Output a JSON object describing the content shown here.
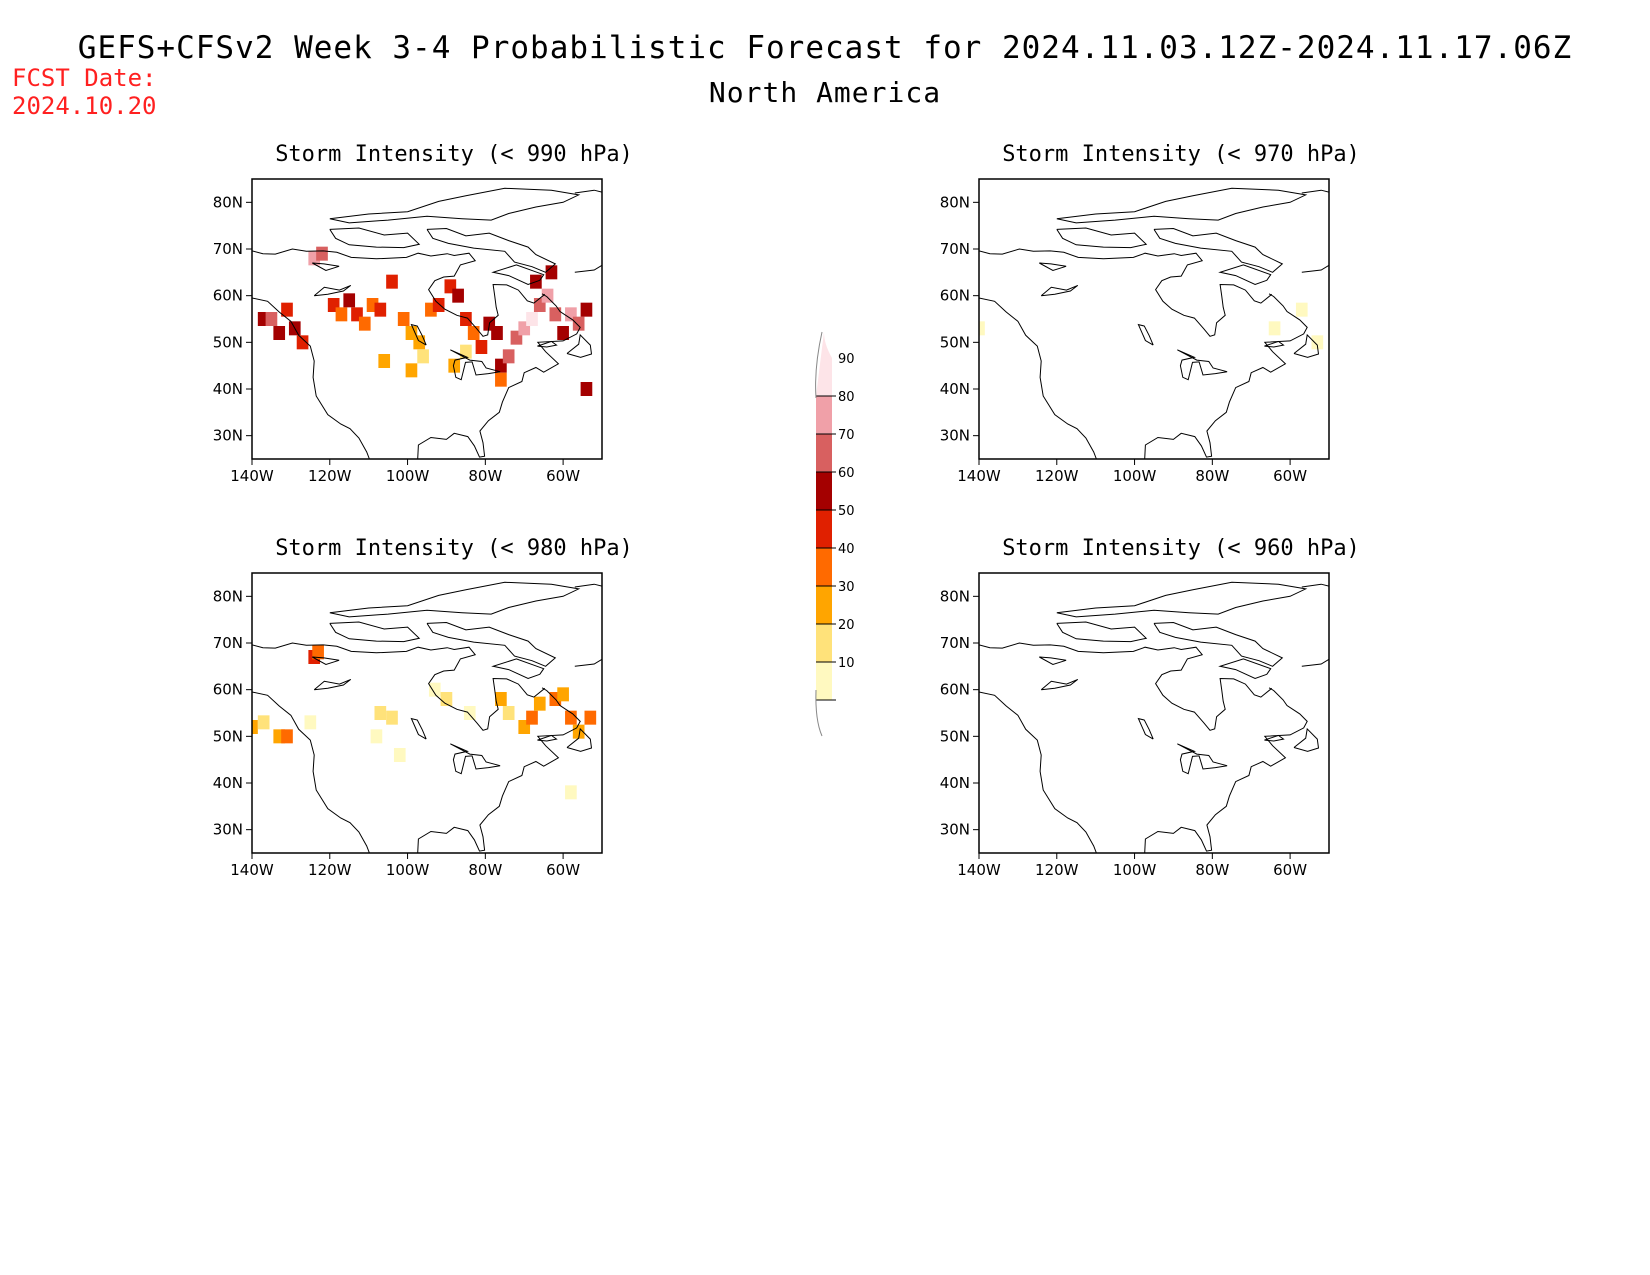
{
  "title": "GEFS+CFSv2 Week 3-4 Probabilistic Forecast for 2024.11.03.12Z-2024.11.17.06Z",
  "subtitle": "North America",
  "fcst_date_label": "FCST Date:",
  "fcst_date_value": "2024.10.20",
  "colors": {
    "fcst_text": "#ff2020",
    "levels": [
      "#fff9c0",
      "#ffe27a",
      "#ffa500",
      "#ff6a00",
      "#e02000",
      "#a40000",
      "#d86060",
      "#f0a0a8",
      "#fde4e8"
    ]
  },
  "axis": {
    "lon_ticks": [
      "140W",
      "120W",
      "100W",
      "80W",
      "60W"
    ],
    "lat_ticks": [
      "80N",
      "70N",
      "60N",
      "50N",
      "40N",
      "30N"
    ]
  },
  "colorbar": {
    "labels": [
      "10",
      "20",
      "30",
      "40",
      "50",
      "60",
      "70",
      "80",
      "90"
    ]
  },
  "panels": [
    {
      "id": "p990",
      "title": "Storm Intensity (< 990 hPa)"
    },
    {
      "id": "p970",
      "title": "Storm Intensity (< 970 hPa)"
    },
    {
      "id": "p980",
      "title": "Storm Intensity (< 980 hPa)"
    },
    {
      "id": "p960",
      "title": "Storm Intensity (< 960 hPa)"
    }
  ],
  "chart_data": {
    "type": "heatmap",
    "units": "probability (%)",
    "levels": [
      10,
      20,
      30,
      40,
      50,
      60,
      70,
      80,
      90
    ],
    "lon_range": [
      -140,
      -50
    ],
    "lat_range": [
      25,
      85
    ],
    "maps": [
      {
        "panel": "p990",
        "cells": [
          [
            -137,
            55,
            60
          ],
          [
            -135,
            55,
            70
          ],
          [
            -133,
            52,
            60
          ],
          [
            -131,
            57,
            50
          ],
          [
            -129,
            53,
            60
          ],
          [
            -127,
            50,
            50
          ],
          [
            -124,
            68,
            80
          ],
          [
            -122,
            69,
            70
          ],
          [
            -119,
            58,
            50
          ],
          [
            -117,
            56,
            40
          ],
          [
            -115,
            59,
            60
          ],
          [
            -113,
            56,
            50
          ],
          [
            -111,
            54,
            40
          ],
          [
            -109,
            58,
            40
          ],
          [
            -107,
            57,
            50
          ],
          [
            -104,
            63,
            50
          ],
          [
            -101,
            55,
            40
          ],
          [
            -99,
            52,
            30
          ],
          [
            -97,
            50,
            30
          ],
          [
            -94,
            57,
            40
          ],
          [
            -92,
            58,
            50
          ],
          [
            -89,
            62,
            50
          ],
          [
            -87,
            60,
            60
          ],
          [
            -85,
            55,
            50
          ],
          [
            -83,
            52,
            40
          ],
          [
            -81,
            49,
            50
          ],
          [
            -79,
            54,
            60
          ],
          [
            -77,
            52,
            60
          ],
          [
            -76,
            45,
            60
          ],
          [
            -74,
            47,
            70
          ],
          [
            -72,
            51,
            70
          ],
          [
            -70,
            53,
            80
          ],
          [
            -68,
            55,
            90
          ],
          [
            -66,
            58,
            70
          ],
          [
            -64,
            60,
            80
          ],
          [
            -62,
            56,
            70
          ],
          [
            -60,
            52,
            60
          ],
          [
            -58,
            56,
            80
          ],
          [
            -56,
            54,
            70
          ],
          [
            -54,
            57,
            60
          ],
          [
            -99,
            44,
            30
          ],
          [
            -96,
            47,
            20
          ],
          [
            -88,
            45,
            30
          ],
          [
            -85,
            48,
            20
          ],
          [
            -67,
            63,
            60
          ],
          [
            -63,
            65,
            60
          ],
          [
            -76,
            42,
            40
          ],
          [
            -54,
            40,
            60
          ],
          [
            -106,
            46,
            30
          ]
        ]
      },
      {
        "panel": "p970",
        "cells": [
          [
            -140,
            53,
            10
          ],
          [
            -64,
            53,
            10
          ],
          [
            -53,
            50,
            10
          ],
          [
            -57,
            57,
            10
          ]
        ]
      },
      {
        "panel": "p980",
        "cells": [
          [
            -140,
            52,
            30
          ],
          [
            -137,
            53,
            20
          ],
          [
            -133,
            50,
            30
          ],
          [
            -131,
            50,
            40
          ],
          [
            -124,
            67,
            50
          ],
          [
            -123,
            68,
            40
          ],
          [
            -107,
            55,
            20
          ],
          [
            -104,
            54,
            20
          ],
          [
            -93,
            60,
            10
          ],
          [
            -90,
            58,
            20
          ],
          [
            -84,
            55,
            10
          ],
          [
            -76,
            58,
            30
          ],
          [
            -74,
            55,
            20
          ],
          [
            -70,
            52,
            30
          ],
          [
            -68,
            54,
            40
          ],
          [
            -66,
            57,
            30
          ],
          [
            -62,
            58,
            40
          ],
          [
            -60,
            59,
            30
          ],
          [
            -58,
            54,
            40
          ],
          [
            -56,
            51,
            30
          ],
          [
            -53,
            54,
            40
          ],
          [
            -108,
            50,
            10
          ],
          [
            -102,
            46,
            10
          ],
          [
            -125,
            53,
            10
          ],
          [
            -58,
            38,
            10
          ]
        ]
      },
      {
        "panel": "p960",
        "cells": []
      }
    ]
  }
}
